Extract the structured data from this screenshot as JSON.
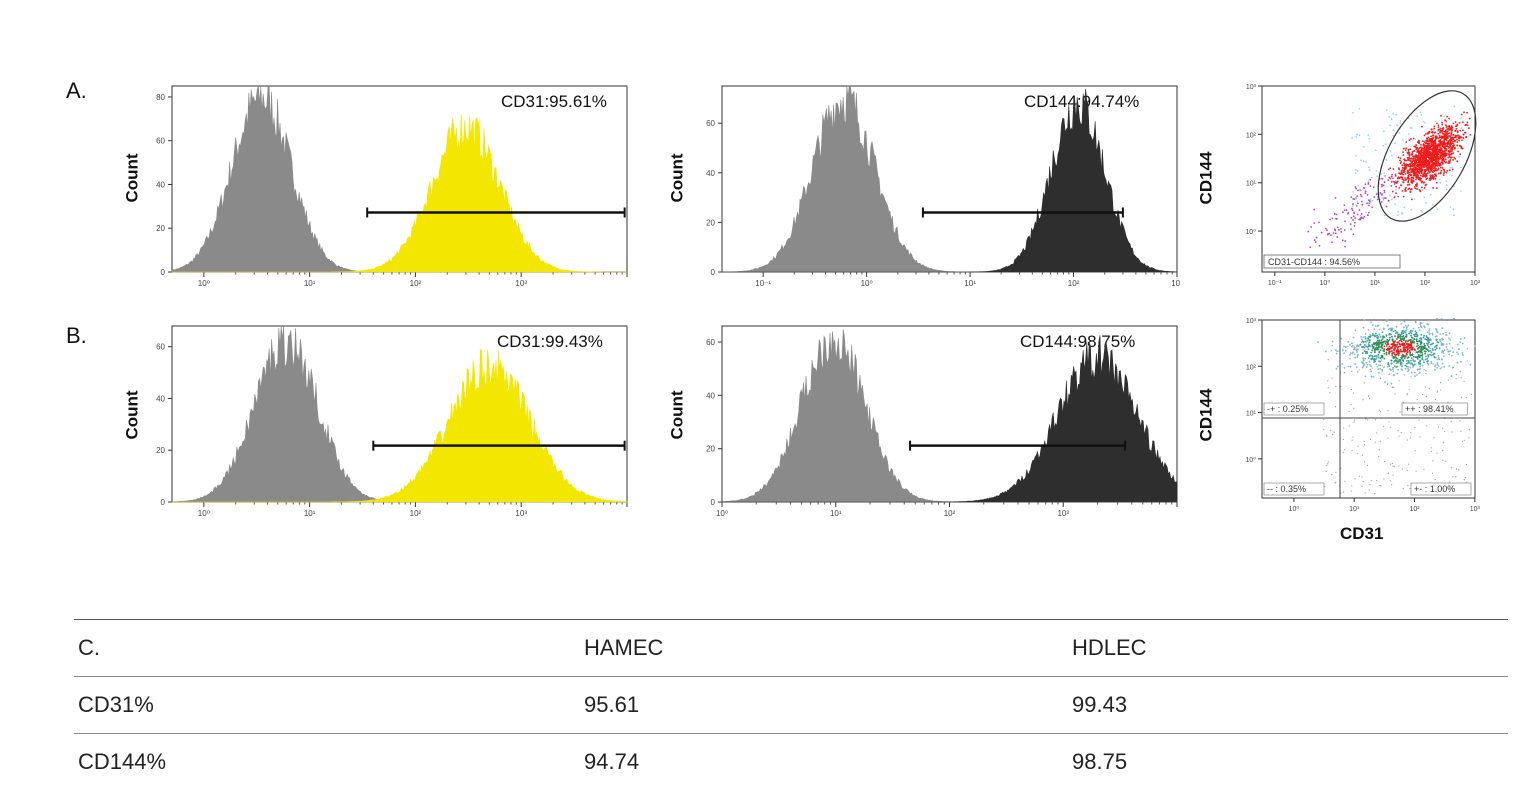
{
  "rows": [
    {
      "label": "A."
    },
    {
      "label": "B."
    }
  ],
  "colors": {
    "negative": "#8a8a8a",
    "cd31": "#f3e600",
    "cd144": "#2e2e2e",
    "gate": "#111111",
    "scatter_red": "#ee1c1c",
    "scatter_cyan": "#7fd4e6",
    "scatter_magenta": "#c040c0"
  },
  "chart_data": [
    {
      "id": "A1",
      "type": "histogram",
      "ylabel": "Count",
      "xscale": "log",
      "xlim": [
        0.05,
        1000
      ],
      "yticks": [
        "0",
        "20",
        "40",
        "60",
        "80"
      ],
      "ylim": [
        0,
        85
      ],
      "xticks": [
        "10⁰",
        "10¹",
        "10²",
        "10³"
      ],
      "annotation": "CD31:95.61%",
      "gate": [
        3.5,
        950
      ],
      "series": [
        {
          "color": "#8a8a8a",
          "peak_x": 0.35,
          "peak_y": 82,
          "width": 0.28
        },
        {
          "color": "#f3e600",
          "peak_x": 30,
          "peak_y": 68,
          "width": 0.32
        }
      ]
    },
    {
      "id": "A2",
      "type": "histogram",
      "ylabel": "Count",
      "xscale": "log",
      "xlim": [
        0.04,
        1000
      ],
      "yticks": [
        "0",
        "20",
        "40",
        "60"
      ],
      "ylim": [
        0,
        75
      ],
      "xticks": [
        "10⁻¹",
        "10⁰",
        "10¹",
        "10²",
        "10³"
      ],
      "annotation": "CD144:94.74%",
      "gate": [
        3.5,
        300
      ],
      "series": [
        {
          "color": "#8a8a8a",
          "peak_x": 0.6,
          "peak_y": 72,
          "width": 0.3
        },
        {
          "color": "#2e2e2e",
          "peak_x": 110,
          "peak_y": 70,
          "width": 0.26
        }
      ]
    },
    {
      "id": "A3",
      "type": "scatter",
      "xlabel": "",
      "ylabel": "CD144",
      "xscale": "log",
      "yscale": "log",
      "xticks": [
        "10⁻¹",
        "10⁰",
        "10¹",
        "10²",
        "10³"
      ],
      "yticks": [
        "10⁰",
        "10¹",
        "10²",
        "10³"
      ],
      "gate_label": "CD31-CD144 : 94.56%"
    },
    {
      "id": "B1",
      "type": "histogram",
      "ylabel": "Count",
      "xscale": "log",
      "xlim": [
        0.05,
        1000
      ],
      "yticks": [
        "0",
        "20",
        "40",
        "60"
      ],
      "ylim": [
        0,
        68
      ],
      "xticks": [
        "10⁰",
        "10¹",
        "10²",
        "10³"
      ],
      "annotation": "CD31:99.43%",
      "gate": [
        4,
        950
      ],
      "series": [
        {
          "color": "#8a8a8a",
          "peak_x": 0.6,
          "peak_y": 64,
          "width": 0.3
        },
        {
          "color": "#f3e600",
          "peak_x": 50,
          "peak_y": 54,
          "width": 0.38
        }
      ]
    },
    {
      "id": "B2",
      "type": "histogram",
      "ylabel": "Count",
      "xscale": "log",
      "xlim": [
        0.1,
        1000
      ],
      "yticks": [
        "0",
        "20",
        "40",
        "60"
      ],
      "ylim": [
        0,
        66
      ],
      "xticks": [
        "10⁰",
        "10¹",
        "10²",
        "10³"
      ],
      "annotation": "CD144:98.75%",
      "gate": [
        4.5,
        350
      ],
      "series": [
        {
          "color": "#8a8a8a",
          "peak_x": 0.95,
          "peak_y": 63,
          "width": 0.28
        },
        {
          "color": "#2e2e2e",
          "peak_x": 200,
          "peak_y": 56,
          "width": 0.35
        }
      ]
    },
    {
      "id": "B3",
      "type": "scatter",
      "xlabel": "CD31",
      "ylabel": "CD144",
      "xscale": "log",
      "yscale": "log",
      "xticks": [
        "10⁰",
        "10¹",
        "10²",
        "10³"
      ],
      "yticks": [
        "10⁰",
        "10¹",
        "10²",
        "10³"
      ],
      "quadrants": {
        "ul": "-+ : 0.25%",
        "ur": "++ : 98.41%",
        "ll": "-- : 0.35%",
        "lr": "+- : 1.00%"
      }
    }
  ],
  "table": {
    "headers": [
      "C.",
      "HAMEC",
      "HDLEC"
    ],
    "rows": [
      [
        "CD31%",
        "95.61",
        "99.43"
      ],
      [
        "CD144%",
        "94.74",
        "98.75"
      ]
    ]
  }
}
